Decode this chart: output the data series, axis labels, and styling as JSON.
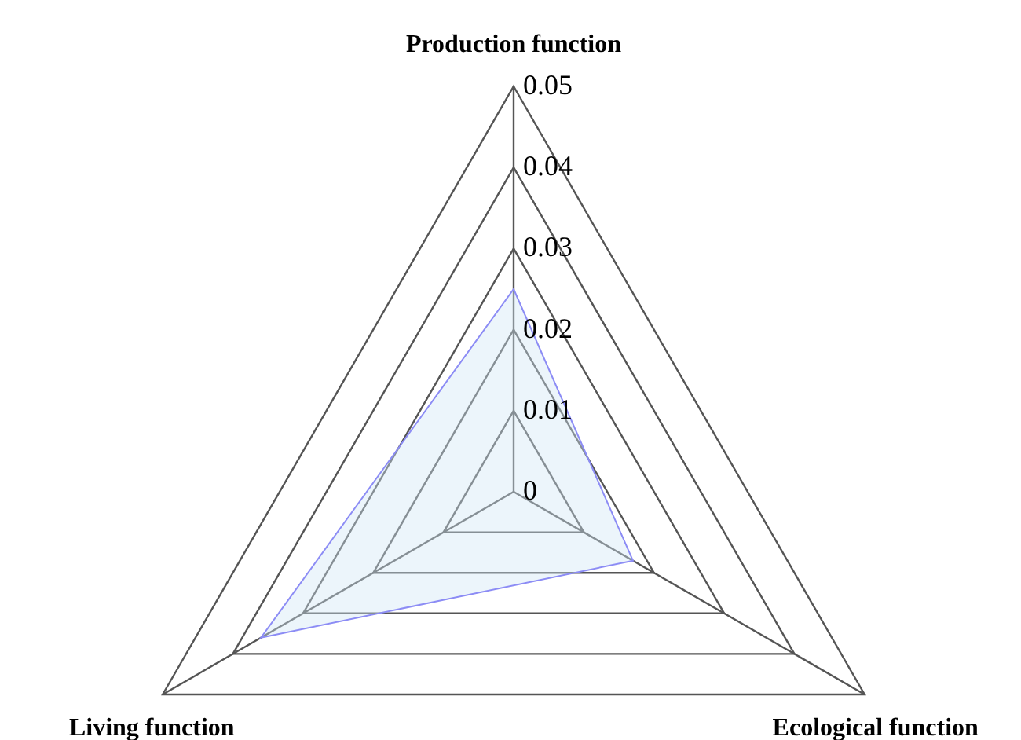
{
  "chart_data": {
    "type": "radar",
    "categories": [
      "Production function",
      "Ecological function",
      "Living function"
    ],
    "series": [
      {
        "color": "#8c8cf5",
        "values": [
          0.025,
          0.017,
          0.036
        ]
      }
    ],
    "ylim": [
      0,
      0.05
    ],
    "yticks": [
      0,
      0.01,
      0.02,
      0.03,
      0.04,
      0.05
    ],
    "grid": true,
    "legend": false
  }
}
